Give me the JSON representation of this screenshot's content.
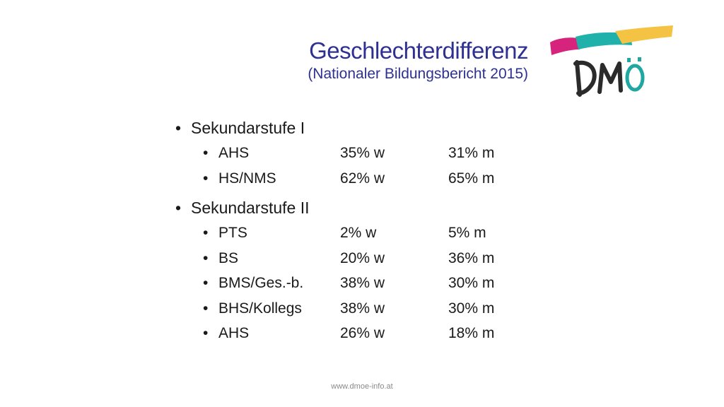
{
  "header": {
    "title": "Geschlechterdifferenz",
    "subtitle": "(Nationaler Bildungsbericht 2015)"
  },
  "logo": {
    "text": "DMÖ",
    "colors": {
      "pink": "#d6247c",
      "teal": "#20b2aa",
      "yellow": "#f5c343",
      "letters": "#2b2b2b",
      "umlaut": "#1fa7a0"
    }
  },
  "bullet_glyph": "•",
  "groups": [
    {
      "label": "Sekundarstufe I",
      "rows": [
        {
          "name": "AHS",
          "w": "35% w",
          "m": "31% m"
        },
        {
          "name": "HS/NMS",
          "w": "62% w",
          "m": "65% m"
        }
      ]
    },
    {
      "label": "Sekundarstufe II",
      "rows": [
        {
          "name": "PTS",
          "w": "2% w",
          "m": "5% m"
        },
        {
          "name": "BS",
          "w": "20% w",
          "m": "36% m"
        },
        {
          "name": "BMS/Ges.-b.",
          "w": "38% w",
          "m": "30% m"
        },
        {
          "name": "BHS/Kollegs",
          "w": "38% w",
          "m": "30% m"
        },
        {
          "name": "AHS",
          "w": "26% w",
          "m": "18% m"
        }
      ]
    }
  ],
  "footer": {
    "url": "www.dmoe-info.at"
  }
}
